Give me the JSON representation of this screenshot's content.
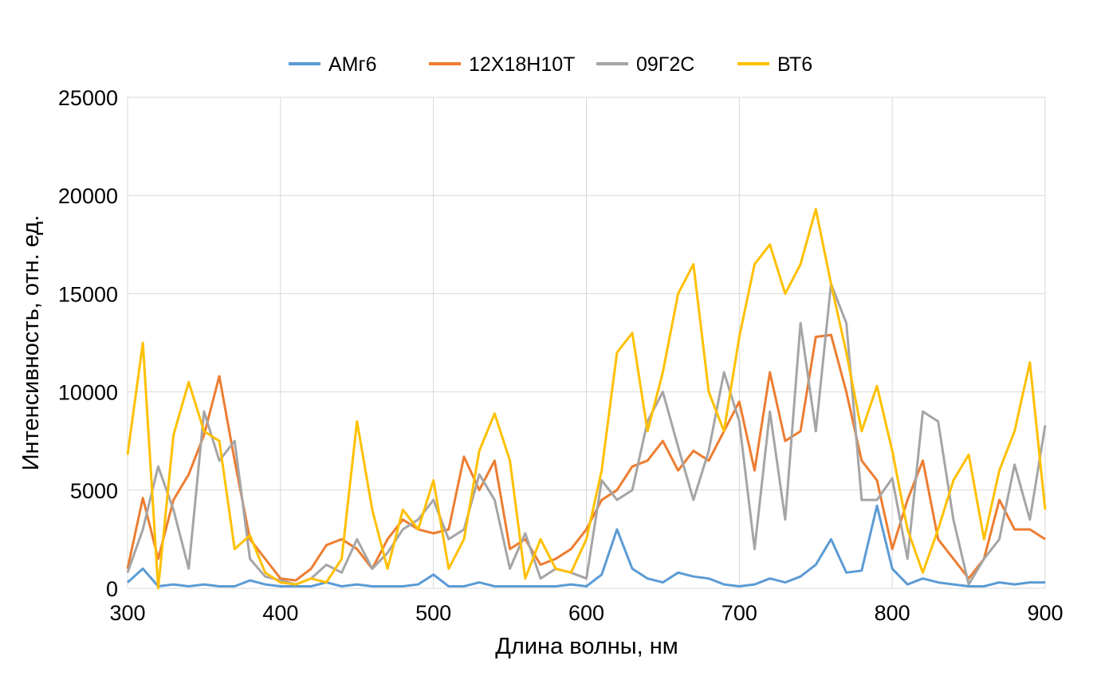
{
  "chart_data": {
    "type": "line",
    "title": "",
    "xlabel": "Длина волны, нм",
    "ylabel": "Интенсивность, отн. ед.",
    "xlim": [
      300,
      900
    ],
    "ylim": [
      0,
      25000
    ],
    "xticks": [
      "300",
      "400",
      "500",
      "600",
      "700",
      "800",
      "900"
    ],
    "yticks": [
      "0",
      "5000",
      "10000",
      "15000",
      "20000",
      "25000"
    ],
    "grid": true,
    "legend_position": "top",
    "x": [
      300,
      310,
      320,
      330,
      340,
      350,
      360,
      370,
      380,
      390,
      400,
      410,
      420,
      430,
      440,
      450,
      460,
      470,
      480,
      490,
      500,
      510,
      520,
      530,
      540,
      550,
      560,
      570,
      580,
      590,
      600,
      610,
      620,
      630,
      640,
      650,
      660,
      670,
      680,
      690,
      700,
      710,
      720,
      730,
      740,
      750,
      760,
      770,
      780,
      790,
      800,
      810,
      820,
      830,
      840,
      850,
      860,
      870,
      880,
      890,
      900
    ],
    "series": [
      {
        "name": "АМг6",
        "color": "#5B9BD5",
        "values": [
          300,
          1000,
          100,
          200,
          100,
          200,
          100,
          100,
          400,
          200,
          100,
          100,
          100,
          300,
          100,
          200,
          100,
          100,
          100,
          200,
          700,
          100,
          100,
          300,
          100,
          100,
          100,
          100,
          100,
          200,
          100,
          700,
          3000,
          1000,
          500,
          300,
          800,
          600,
          500,
          200,
          100,
          200,
          500,
          300,
          600,
          1200,
          2500,
          800,
          900,
          4200,
          1000,
          200,
          500,
          300,
          200,
          100,
          100,
          300,
          200,
          300,
          300
        ]
      },
      {
        "name": "12Х18Н10Т",
        "color": "#ED7D31",
        "values": [
          1000,
          4600,
          1500,
          4500,
          5800,
          7800,
          10800,
          6500,
          2500,
          1500,
          500,
          400,
          1000,
          2200,
          2500,
          2000,
          1000,
          2500,
          3500,
          3000,
          2800,
          3000,
          6700,
          5000,
          6500,
          2000,
          2500,
          1200,
          1500,
          2000,
          3000,
          4500,
          5000,
          6200,
          6500,
          7500,
          6000,
          7000,
          6500,
          8000,
          9500,
          6000,
          11000,
          7500,
          8000,
          12800,
          12900,
          10000,
          6500,
          5500,
          2000,
          4500,
          6500,
          2500,
          1500,
          500,
          1500,
          4500,
          3000,
          3000,
          2500
        ]
      },
      {
        "name": "09Г2С",
        "color": "#A5A5A5",
        "values": [
          800,
          3000,
          6200,
          4000,
          1000,
          9000,
          6500,
          7500,
          1500,
          600,
          400,
          200,
          500,
          1200,
          800,
          2500,
          1000,
          1800,
          3000,
          3500,
          4500,
          2500,
          3000,
          5800,
          4500,
          1000,
          2800,
          500,
          1000,
          800,
          500,
          5500,
          4500,
          5000,
          8500,
          10000,
          7200,
          4500,
          7000,
          11000,
          8500,
          2000,
          9000,
          3500,
          13500,
          8000,
          15500,
          13500,
          4500,
          4500,
          5600,
          1500,
          9000,
          8500,
          3500,
          200,
          1500,
          2500,
          6300,
          3500,
          8300
        ]
      },
      {
        "name": "ВТ6",
        "color": "#FFC000",
        "values": [
          6800,
          12500,
          0,
          7800,
          10500,
          8000,
          7500,
          2000,
          2700,
          800,
          300,
          200,
          500,
          300,
          1500,
          8500,
          4000,
          1000,
          4000,
          3000,
          5500,
          1000,
          2500,
          7000,
          8900,
          6500,
          500,
          2500,
          1000,
          800,
          2500,
          6000,
          12000,
          13000,
          8000,
          11000,
          15000,
          16500,
          10000,
          8000,
          12800,
          16500,
          17500,
          15000,
          16500,
          19300,
          15500,
          12000,
          8000,
          10300,
          7000,
          3000,
          800,
          3000,
          5500,
          6800,
          2500,
          6000,
          8000,
          11500,
          4000
        ]
      }
    ]
  }
}
